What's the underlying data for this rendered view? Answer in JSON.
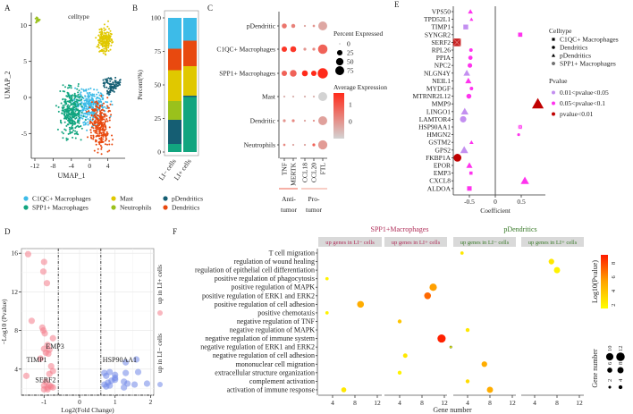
{
  "panel_labels": [
    "A",
    "B",
    "C",
    "D",
    "E",
    "F"
  ],
  "chart_data": [
    {
      "type": "scatter",
      "title": "celltype",
      "xlabel": "UMAP_1",
      "ylabel": "UMAP_2",
      "xticks": [
        -12,
        -8,
        -4,
        0,
        4
      ],
      "yticks": [
        -5,
        0,
        5,
        10
      ],
      "clusters": [
        {
          "name": "C1QC+ Macrophages",
          "color": "#3dbbe8",
          "center": [
            0,
            -1.3
          ],
          "spread": [
            1.7,
            1.1
          ],
          "n": 320
        },
        {
          "name": "Mast",
          "color": "#e0c800",
          "center": [
            3.3,
            8.0
          ],
          "spread": [
            0.7,
            0.9
          ],
          "n": 200
        },
        {
          "name": "pDendritics",
          "color": "#155e73",
          "center": [
            4.6,
            1.8
          ],
          "spread": [
            1.0,
            0.5
          ],
          "n": 90
        },
        {
          "name": "SPP1+ Macrophages",
          "color": "#12a57f",
          "center": [
            -4,
            -2
          ],
          "spread": [
            1.2,
            1.7
          ],
          "n": 320
        },
        {
          "name": "Neutrophils",
          "color": "#9ac11c",
          "center": [
            -11.5,
            10.8
          ],
          "spread": [
            0.25,
            0.2
          ],
          "n": 15
        },
        {
          "name": "Dendritics",
          "color": "#e8490f",
          "center": [
            2.3,
            -3.8
          ],
          "spread": [
            1.1,
            1.7
          ],
          "n": 280
        }
      ]
    },
    {
      "type": "bar",
      "stacked": true,
      "categories": [
        "LI− cells",
        "LI+ cells"
      ],
      "ylabel": "Percent(%)",
      "yticks": [
        0,
        25,
        50,
        75,
        100
      ],
      "ylim": [
        0,
        100
      ],
      "series": [
        {
          "name": "SPP1+ Macrophages",
          "color": "#12a57f",
          "values": [
            6,
            41
          ]
        },
        {
          "name": "pDendritics",
          "color": "#155e73",
          "values": [
            18,
            1
          ]
        },
        {
          "name": "Neutrophils",
          "color": "#9ac11c",
          "values": [
            14,
            0
          ]
        },
        {
          "name": "Mast",
          "color": "#e0c800",
          "values": [
            23,
            22
          ]
        },
        {
          "name": "Dendritics",
          "color": "#e8490f",
          "values": [
            16,
            19
          ]
        },
        {
          "name": "C1QC+ Macrophages",
          "color": "#3dbbe8",
          "values": [
            23,
            17
          ]
        }
      ]
    },
    {
      "type": "dot",
      "rows": [
        "pDendritic",
        "C1QC+ Macrophages",
        "SPP1+ Macrophages",
        "Mast",
        "Dendritic",
        "Neutrophils"
      ],
      "columns": [
        "TNF",
        "MERTK",
        "CCL18",
        "CCL20",
        "FTL"
      ],
      "percent": [
        [
          20,
          12,
          2,
          3,
          75
        ],
        [
          25,
          30,
          5,
          5,
          85
        ],
        [
          25,
          40,
          30,
          25,
          100
        ],
        [
          2,
          2,
          2,
          2,
          75
        ],
        [
          5,
          5,
          2,
          2,
          75
        ],
        [
          3,
          2,
          2,
          5,
          80
        ]
      ],
      "avg_expression": [
        [
          0.5,
          0.3,
          -0.3,
          0,
          -0.3
        ],
        [
          1.5,
          1.5,
          0,
          0.2,
          0.8
        ],
        [
          0.8,
          0.8,
          1.7,
          1.7,
          1.7
        ],
        [
          -0.5,
          -0.5,
          -0.5,
          -0.5,
          -1
        ],
        [
          0,
          0.2,
          -0.3,
          0,
          -0.2
        ],
        [
          0.2,
          -0.3,
          -0.3,
          0.8,
          -0.1
        ]
      ],
      "size_legend_title": "Percent Expressed",
      "size_legend": [
        0,
        25,
        50,
        75
      ],
      "color_legend_title": "Average Expression",
      "color_ticks": [
        0,
        1
      ],
      "color_range": [
        -1,
        1.7
      ],
      "colors": {
        "low": "#d3d3d3",
        "high": "#ff2a1a"
      },
      "groups": [
        {
          "line1": "Anti-",
          "line2": "tumor",
          "color": "#f08070"
        },
        {
          "line1": "Pro-",
          "line2": "tumor",
          "color": "#f4b0a4"
        }
      ]
    },
    {
      "type": "scatter",
      "xlabel": "Log2(Fold Change)",
      "ylabel": "−Log10 (Pvalue)",
      "xticks": [
        -1,
        0,
        1,
        2
      ],
      "yticks": [
        4,
        8,
        12,
        16
      ],
      "thresholds": {
        "x": [
          -0.6,
          0.6
        ],
        "y": 1.3
      },
      "series": [
        {
          "name": "up in LI+ cells",
          "color": "#f47c8a",
          "points": [
            [
              -1.45,
              15.9
            ],
            [
              -1,
              15.1
            ],
            [
              -1.02,
              14.1
            ],
            [
              -0.92,
              12.9
            ],
            [
              -1.35,
              9
            ],
            [
              -1.05,
              8.3
            ],
            [
              -1.02,
              8
            ],
            [
              -0.98,
              7.7
            ],
            [
              -0.75,
              7.2
            ],
            [
              -0.9,
              6.5
            ],
            [
              -1.0,
              6.1
            ],
            [
              -0.85,
              6
            ],
            [
              -0.95,
              5.7
            ],
            [
              -0.88,
              5.6
            ],
            [
              -1.1,
              5.1
            ],
            [
              -0.8,
              4.3
            ],
            [
              -0.75,
              3.8
            ],
            [
              -1.5,
              3.3
            ],
            [
              -0.85,
              3.5
            ],
            [
              -0.95,
              2.7
            ],
            [
              -1.0,
              2.3
            ],
            [
              -0.8,
              2.2
            ],
            [
              -0.9,
              2.1
            ],
            [
              -0.85,
              2.3
            ],
            [
              -0.75,
              2.1
            ],
            [
              -1.0,
              1.9
            ],
            [
              -0.9,
              1.9
            ]
          ]
        },
        {
          "name": "up in LI− cells",
          "color": "#7086e8",
          "points": [
            [
              0.7,
              3.6
            ],
            [
              0.85,
              3.7
            ],
            [
              0.75,
              3.3
            ],
            [
              1.0,
              3.4
            ],
            [
              1.0,
              3.1
            ],
            [
              0.9,
              2.8
            ],
            [
              0.8,
              2.6
            ],
            [
              1.3,
              3.6
            ],
            [
              1.65,
              3.7
            ],
            [
              1.3,
              4.7
            ],
            [
              1.6,
              5.0
            ],
            [
              0.7,
              2.4
            ],
            [
              0.75,
              2.2
            ],
            [
              0.85,
              2.3
            ],
            [
              1.25,
              2.7
            ],
            [
              1.35,
              2.5
            ],
            [
              1.55,
              2.4
            ],
            [
              1.9,
              2.5
            ],
            [
              1.25,
              2.1
            ],
            [
              1.0,
              2.9
            ]
          ]
        }
      ],
      "annotations": [
        {
          "text": "EMP3",
          "x": -0.95,
          "y": 6.4
        },
        {
          "text": "TIMP1",
          "x": -1.5,
          "y": 5.0
        },
        {
          "text": "SERF2",
          "x": -1.25,
          "y": 2.9
        },
        {
          "text": "HSP90AA1",
          "x": 0.65,
          "y": 5.0
        }
      ]
    },
    {
      "type": "scatter",
      "xlabel": "Coefficient",
      "xticks": [
        -0.5,
        0,
        0.5
      ],
      "genes": [
        {
          "name": "VPS50",
          "coef": -0.48,
          "celltype": "pDendritics",
          "pvalue": "0.05<pvalue<0.1",
          "size": 1.2
        },
        {
          "name": "TPD52L1",
          "coef": -0.46,
          "celltype": "pDendritics",
          "pvalue": "0.05<pvalue<0.1",
          "size": 0.9
        },
        {
          "name": "TIMP1",
          "coef": -0.57,
          "celltype": "C1QC+ Macrophages",
          "pvalue": "0.01<pvalue<0.05",
          "size": 1.5
        },
        {
          "name": "SYNGR2",
          "coef": 0.48,
          "celltype": "C1QC+ Macrophages",
          "pvalue": "0.05<pvalue<0.1",
          "size": 1.3
        },
        {
          "name": "SERF2",
          "coef": -0.74,
          "celltype": "SPP1+ Macrophages",
          "pvalue": "pvalue<0.01",
          "size": 2.4
        },
        {
          "name": "RPL26",
          "coef": -0.47,
          "celltype": "Dendritics",
          "pvalue": "0.05<pvalue<0.1",
          "size": 1.0
        },
        {
          "name": "PPIA",
          "coef": -0.48,
          "celltype": "Dendritics",
          "pvalue": "0.05<pvalue<0.1",
          "size": 1.2
        },
        {
          "name": "NPC2",
          "coef": -0.49,
          "celltype": "Dendritics",
          "pvalue": "0.05<pvalue<0.1",
          "size": 1.3
        },
        {
          "name": "NLGN4Y",
          "coef": -0.55,
          "celltype": "pDendritics",
          "pvalue": "0.01<pvalue<0.05",
          "size": 1.6
        },
        {
          "name": "NEIL1",
          "coef": -0.52,
          "celltype": "pDendritics",
          "pvalue": "0.05<pvalue<0.1",
          "size": 1.5
        },
        {
          "name": "MYDGF",
          "coef": -0.46,
          "celltype": "Dendritics",
          "pvalue": "0.05<pvalue<0.1",
          "size": 1.0
        },
        {
          "name": "MTRNR2L12",
          "coef": -0.51,
          "celltype": "Dendritics",
          "pvalue": "0.05<pvalue<0.1",
          "size": 1.4
        },
        {
          "name": "MMP9",
          "coef": 0.82,
          "celltype": "pDendritics",
          "pvalue": "pvalue<0.01",
          "size": 2.8
        },
        {
          "name": "LINGO1",
          "coef": -0.59,
          "celltype": "pDendritics",
          "pvalue": "0.01<pvalue<0.05",
          "size": 1.8
        },
        {
          "name": "LAMTOR4",
          "coef": -0.62,
          "celltype": "Dendritics",
          "pvalue": "0.01<pvalue<0.05",
          "size": 1.8
        },
        {
          "name": "HSP90AA1",
          "coef": 0.48,
          "celltype": "SPP1+ Macrophages",
          "pvalue": "0.05<pvalue<0.1",
          "size": 1.2
        },
        {
          "name": "HMGN2",
          "coef": 0.45,
          "celltype": "Dendritics",
          "pvalue": "0.05<pvalue<0.1",
          "size": 0.8
        },
        {
          "name": "GSTM2",
          "coef": -0.46,
          "celltype": "pDendritics",
          "pvalue": "0.05<pvalue<0.1",
          "size": 1.0
        },
        {
          "name": "GPS2",
          "coef": -0.6,
          "celltype": "pDendritics",
          "pvalue": "0.01<pvalue<0.05",
          "size": 1.9
        },
        {
          "name": "FKBP1A",
          "coef": -0.73,
          "celltype": "Dendritics",
          "pvalue": "pvalue<0.01",
          "size": 2.2
        },
        {
          "name": "EPOR",
          "coef": -0.5,
          "celltype": "pDendritics",
          "pvalue": "0.05<pvalue<0.1",
          "size": 1.5
        },
        {
          "name": "EMP3",
          "coef": -0.47,
          "celltype": "C1QC+ Macrophages",
          "pvalue": "0.05<pvalue<0.1",
          "size": 1.0
        },
        {
          "name": "CXCL8",
          "coef": 0.57,
          "celltype": "pDendritics",
          "pvalue": "0.05<pvalue<0.1",
          "size": 2.0
        },
        {
          "name": "ALDOA",
          "coef": -0.5,
          "celltype": "C1QC+ Macrophages",
          "pvalue": "0.05<pvalue<0.1",
          "size": 1.4
        }
      ],
      "celltype_legend_title": "Celltype",
      "celltypes": [
        "C1QC+ Macrophages",
        "Dendritics",
        "pDendritics",
        "SPP1+ Macrophages"
      ],
      "pvalue_legend_title": "Pvalue",
      "pvalue_levels": [
        {
          "label": "0.01<pvalue<0.05",
          "color": "#c38ff0"
        },
        {
          "label": "0.05<pvalue<0.1",
          "color": "#ff33ee"
        },
        {
          "label": "pvalue<0.01",
          "color": "#c00000"
        }
      ]
    },
    {
      "type": "scatter",
      "xlabel": "Gene number",
      "xticks": [
        4,
        8,
        12
      ],
      "groups": [
        {
          "title": "SPP1+Macrophages",
          "color": "#b0305a"
        },
        {
          "title": "pDendritics",
          "color": "#3a7a2a"
        }
      ],
      "facets": [
        "up genes in LI− cells",
        "up genes in LI+ cells",
        "up genes in LI− cells",
        "up genes in LI+ cells"
      ],
      "rows": [
        "T cell migration",
        "regulation of wound healing",
        "regulation of epithelial cell differentiation",
        "positive regulation of phagocytosis",
        "positive regulation of MAPK",
        "positive regulation of ERK1 and ERK2",
        "positive regulation of cell adhesion",
        "positive chemotaxis",
        "negative regulation of TNF",
        "negative regulation of MAPK",
        "negative regulation of immune system",
        "negative regulation of ERK1 and ERK2",
        "negative regulation of cell adhesion",
        "mononuclear cell migration",
        "extracellular structure organization",
        "complement activation",
        "activation of immune response"
      ],
      "side_labels": [
        "up in LI+ cells",
        "up in LI− cells"
      ],
      "points": [
        {
          "facet": 0,
          "row": 3,
          "genes": 3,
          "log10p": 2
        },
        {
          "facet": 0,
          "row": 6,
          "genes": 9,
          "log10p": 5
        },
        {
          "facet": 0,
          "row": 7,
          "genes": 3,
          "log10p": 2
        },
        {
          "facet": 0,
          "row": 16,
          "genes": 6,
          "log10p": 2.5
        },
        {
          "facet": 1,
          "row": 4,
          "genes": 10,
          "log10p": 5.5
        },
        {
          "facet": 1,
          "row": 5,
          "genes": 9,
          "log10p": 7
        },
        {
          "facet": 1,
          "row": 8,
          "genes": 4,
          "log10p": 4
        },
        {
          "facet": 1,
          "row": 10,
          "genes": 11.5,
          "log10p": 9
        },
        {
          "facet": 1,
          "row": 12,
          "genes": 5,
          "log10p": 2.5
        },
        {
          "facet": 1,
          "row": 14,
          "genes": 4,
          "log10p": 2
        },
        {
          "facet": 2,
          "row": 0,
          "genes": 3,
          "log10p": 2.5
        },
        {
          "facet": 2,
          "row": 9,
          "genes": 4,
          "log10p": 2.5
        },
        {
          "facet": 2,
          "row": 11,
          "genes": 1,
          "log10p": 2
        },
        {
          "facet": 2,
          "row": 13,
          "genes": 7,
          "log10p": 5
        },
        {
          "facet": 2,
          "row": 15,
          "genes": 4,
          "log10p": 3
        },
        {
          "facet": 2,
          "row": 16,
          "genes": 8,
          "log10p": 5
        },
        {
          "facet": 3,
          "row": 1,
          "genes": 7,
          "log10p": 2.5
        },
        {
          "facet": 3,
          "row": 2,
          "genes": 8,
          "log10p": 2
        }
      ],
      "color_legend_title": "Log10(Pvalue)",
      "color_ticks": [
        2,
        4,
        6,
        8
      ],
      "color_range": [
        1.5,
        9.2
      ],
      "size_legend_title": "Gene number",
      "size_legend": [
        2,
        4,
        6,
        8,
        10,
        12
      ]
    }
  ]
}
